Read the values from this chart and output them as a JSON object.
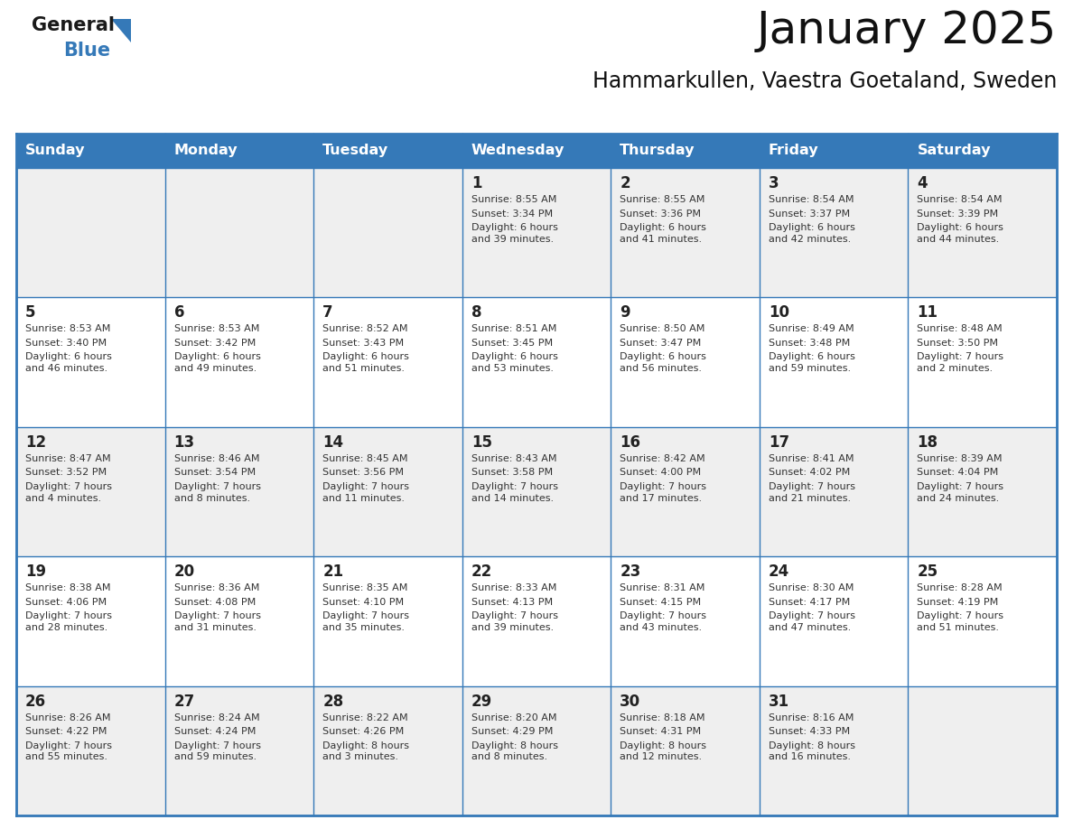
{
  "title": "January 2025",
  "subtitle": "Hammarkullen, Vaestra Goetaland, Sweden",
  "days_of_week": [
    "Sunday",
    "Monday",
    "Tuesday",
    "Wednesday",
    "Thursday",
    "Friday",
    "Saturday"
  ],
  "header_bg": "#3579B8",
  "header_text": "#FFFFFF",
  "cell_bg_odd": "#EFEFEF",
  "cell_bg_even": "#FFFFFF",
  "border_color": "#3579B8",
  "text_color": "#333333",
  "day_num_color": "#222222",
  "logo_general_color": "#1A1A1A",
  "logo_blue_color": "#3579B8",
  "calendar_data": [
    [
      null,
      null,
      null,
      {
        "day": 1,
        "sunrise": "8:55 AM",
        "sunset": "3:34 PM",
        "daylight": "6 hours\nand 39 minutes."
      },
      {
        "day": 2,
        "sunrise": "8:55 AM",
        "sunset": "3:36 PM",
        "daylight": "6 hours\nand 41 minutes."
      },
      {
        "day": 3,
        "sunrise": "8:54 AM",
        "sunset": "3:37 PM",
        "daylight": "6 hours\nand 42 minutes."
      },
      {
        "day": 4,
        "sunrise": "8:54 AM",
        "sunset": "3:39 PM",
        "daylight": "6 hours\nand 44 minutes."
      }
    ],
    [
      {
        "day": 5,
        "sunrise": "8:53 AM",
        "sunset": "3:40 PM",
        "daylight": "6 hours\nand 46 minutes."
      },
      {
        "day": 6,
        "sunrise": "8:53 AM",
        "sunset": "3:42 PM",
        "daylight": "6 hours\nand 49 minutes."
      },
      {
        "day": 7,
        "sunrise": "8:52 AM",
        "sunset": "3:43 PM",
        "daylight": "6 hours\nand 51 minutes."
      },
      {
        "day": 8,
        "sunrise": "8:51 AM",
        "sunset": "3:45 PM",
        "daylight": "6 hours\nand 53 minutes."
      },
      {
        "day": 9,
        "sunrise": "8:50 AM",
        "sunset": "3:47 PM",
        "daylight": "6 hours\nand 56 minutes."
      },
      {
        "day": 10,
        "sunrise": "8:49 AM",
        "sunset": "3:48 PM",
        "daylight": "6 hours\nand 59 minutes."
      },
      {
        "day": 11,
        "sunrise": "8:48 AM",
        "sunset": "3:50 PM",
        "daylight": "7 hours\nand 2 minutes."
      }
    ],
    [
      {
        "day": 12,
        "sunrise": "8:47 AM",
        "sunset": "3:52 PM",
        "daylight": "7 hours\nand 4 minutes."
      },
      {
        "day": 13,
        "sunrise": "8:46 AM",
        "sunset": "3:54 PM",
        "daylight": "7 hours\nand 8 minutes."
      },
      {
        "day": 14,
        "sunrise": "8:45 AM",
        "sunset": "3:56 PM",
        "daylight": "7 hours\nand 11 minutes."
      },
      {
        "day": 15,
        "sunrise": "8:43 AM",
        "sunset": "3:58 PM",
        "daylight": "7 hours\nand 14 minutes."
      },
      {
        "day": 16,
        "sunrise": "8:42 AM",
        "sunset": "4:00 PM",
        "daylight": "7 hours\nand 17 minutes."
      },
      {
        "day": 17,
        "sunrise": "8:41 AM",
        "sunset": "4:02 PM",
        "daylight": "7 hours\nand 21 minutes."
      },
      {
        "day": 18,
        "sunrise": "8:39 AM",
        "sunset": "4:04 PM",
        "daylight": "7 hours\nand 24 minutes."
      }
    ],
    [
      {
        "day": 19,
        "sunrise": "8:38 AM",
        "sunset": "4:06 PM",
        "daylight": "7 hours\nand 28 minutes."
      },
      {
        "day": 20,
        "sunrise": "8:36 AM",
        "sunset": "4:08 PM",
        "daylight": "7 hours\nand 31 minutes."
      },
      {
        "day": 21,
        "sunrise": "8:35 AM",
        "sunset": "4:10 PM",
        "daylight": "7 hours\nand 35 minutes."
      },
      {
        "day": 22,
        "sunrise": "8:33 AM",
        "sunset": "4:13 PM",
        "daylight": "7 hours\nand 39 minutes."
      },
      {
        "day": 23,
        "sunrise": "8:31 AM",
        "sunset": "4:15 PM",
        "daylight": "7 hours\nand 43 minutes."
      },
      {
        "day": 24,
        "sunrise": "8:30 AM",
        "sunset": "4:17 PM",
        "daylight": "7 hours\nand 47 minutes."
      },
      {
        "day": 25,
        "sunrise": "8:28 AM",
        "sunset": "4:19 PM",
        "daylight": "7 hours\nand 51 minutes."
      }
    ],
    [
      {
        "day": 26,
        "sunrise": "8:26 AM",
        "sunset": "4:22 PM",
        "daylight": "7 hours\nand 55 minutes."
      },
      {
        "day": 27,
        "sunrise": "8:24 AM",
        "sunset": "4:24 PM",
        "daylight": "7 hours\nand 59 minutes."
      },
      {
        "day": 28,
        "sunrise": "8:22 AM",
        "sunset": "4:26 PM",
        "daylight": "8 hours\nand 3 minutes."
      },
      {
        "day": 29,
        "sunrise": "8:20 AM",
        "sunset": "4:29 PM",
        "daylight": "8 hours\nand 8 minutes."
      },
      {
        "day": 30,
        "sunrise": "8:18 AM",
        "sunset": "4:31 PM",
        "daylight": "8 hours\nand 12 minutes."
      },
      {
        "day": 31,
        "sunrise": "8:16 AM",
        "sunset": "4:33 PM",
        "daylight": "8 hours\nand 16 minutes."
      },
      null
    ]
  ]
}
